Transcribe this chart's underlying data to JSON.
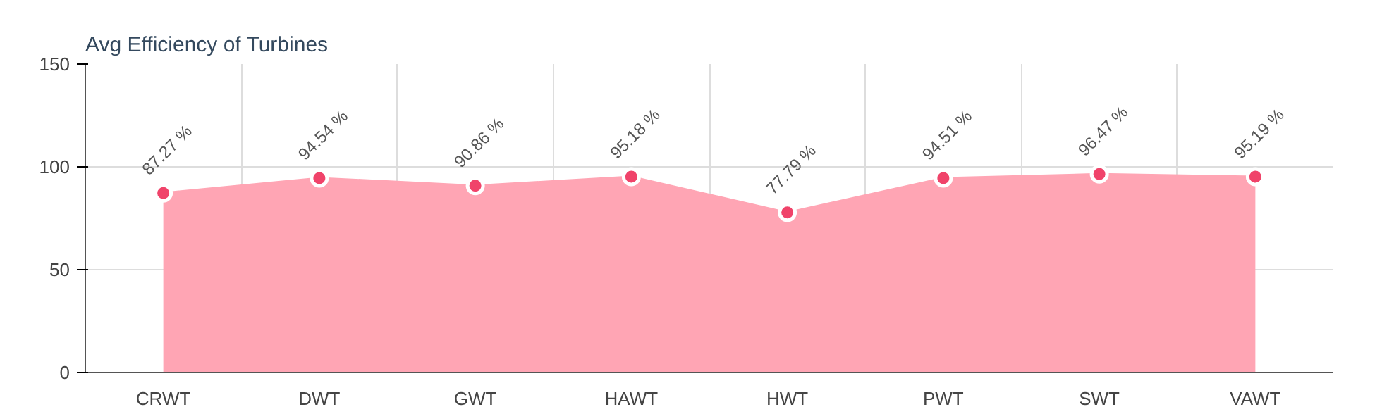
{
  "chart_data": {
    "type": "area",
    "title": "Avg Efficiency of Turbines",
    "categories": [
      "CRWT",
      "DWT",
      "GWT",
      "HAWT",
      "HWT",
      "PWT",
      "SWT",
      "VAWT"
    ],
    "series": [
      {
        "color": "#ffa5b4",
        "values": [
          87.27,
          94.54,
          90.86,
          95.18,
          77.79,
          94.51,
          96.47,
          95.19
        ],
        "value_labels": [
          "87.27 %",
          "94.54 %",
          "90.86 %",
          "95.18 %",
          "77.79 %",
          "94.51 %",
          "96.47 %",
          "95.19 %"
        ]
      }
    ],
    "marker": "circle",
    "ylim": [
      0,
      150
    ],
    "yticks": [
      0,
      50,
      100,
      150
    ],
    "grid": true
  }
}
